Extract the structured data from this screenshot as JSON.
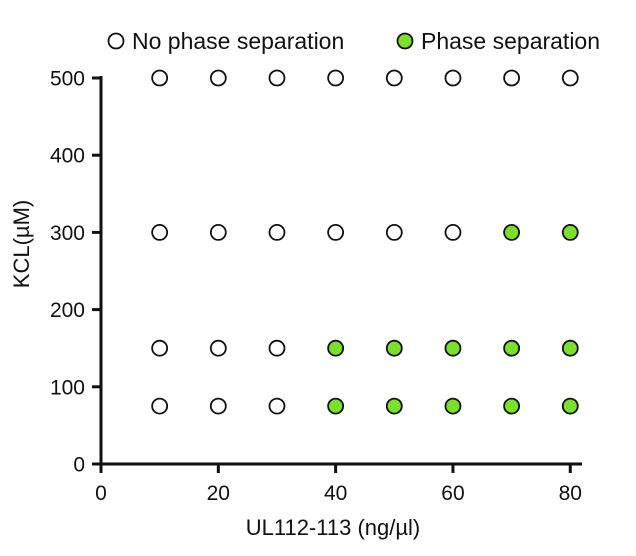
{
  "chart_data": {
    "type": "scatter",
    "xlabel": "UL112-113 (ng/µl)",
    "ylabel": "KCL(µM)",
    "xlim": [
      0,
      82
    ],
    "ylim": [
      0,
      500
    ],
    "xticks": [
      0,
      20,
      40,
      60,
      80
    ],
    "yticks": [
      0,
      100,
      200,
      300,
      400,
      500
    ],
    "grid": false,
    "legend_position": "top",
    "series": [
      {
        "name": "No phase separation",
        "color": "#ffffff",
        "stroke": "#111111",
        "points": [
          [
            10,
            500
          ],
          [
            20,
            500
          ],
          [
            30,
            500
          ],
          [
            40,
            500
          ],
          [
            50,
            500
          ],
          [
            60,
            500
          ],
          [
            70,
            500
          ],
          [
            80,
            500
          ],
          [
            10,
            300
          ],
          [
            20,
            300
          ],
          [
            30,
            300
          ],
          [
            40,
            300
          ],
          [
            50,
            300
          ],
          [
            60,
            300
          ],
          [
            10,
            150
          ],
          [
            20,
            150
          ],
          [
            30,
            150
          ],
          [
            10,
            75
          ],
          [
            20,
            75
          ],
          [
            30,
            75
          ]
        ]
      },
      {
        "name": "Phase separation",
        "color": "#7be02a",
        "stroke": "#111111",
        "points": [
          [
            70,
            300
          ],
          [
            80,
            300
          ],
          [
            40,
            150
          ],
          [
            50,
            150
          ],
          [
            60,
            150
          ],
          [
            70,
            150
          ],
          [
            80,
            150
          ],
          [
            40,
            75
          ],
          [
            50,
            75
          ],
          [
            60,
            75
          ],
          [
            70,
            75
          ],
          [
            80,
            75
          ]
        ]
      }
    ]
  }
}
